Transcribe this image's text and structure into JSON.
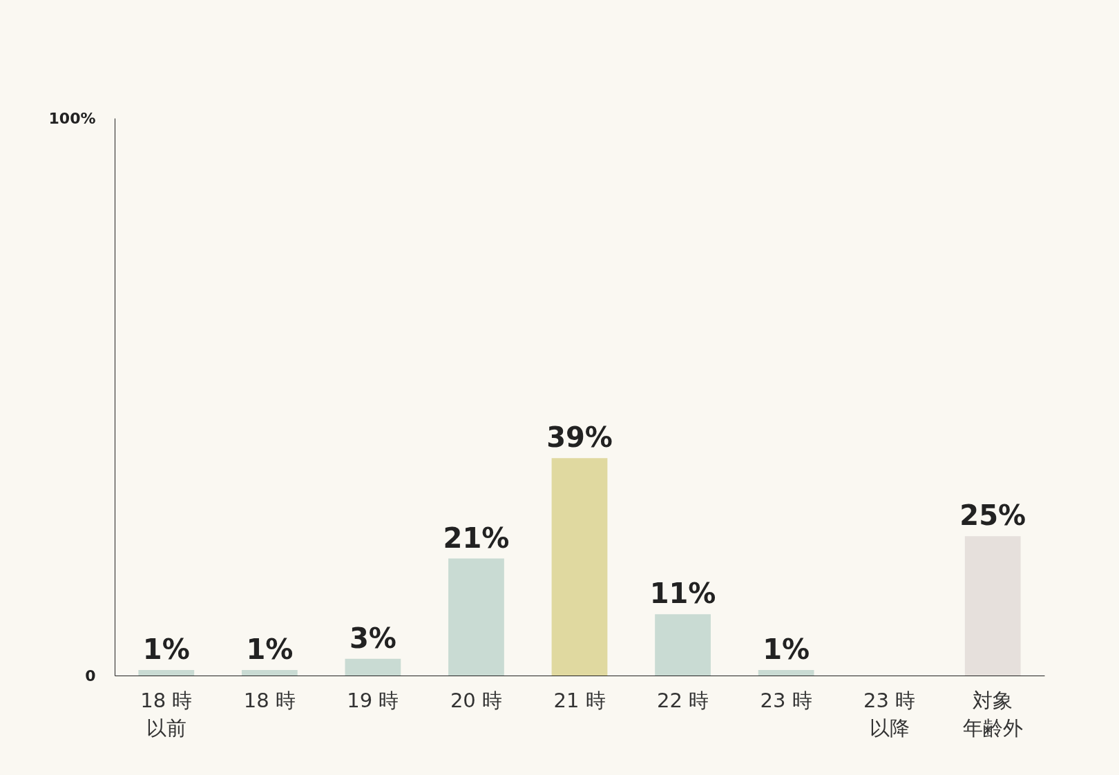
{
  "chart_data": {
    "type": "bar",
    "categories": [
      "18 時以前",
      "18 時",
      "19 時",
      "20 時",
      "21 時",
      "22 時",
      "23 時",
      "23 時以降",
      "対象年齢外"
    ],
    "values": [
      1,
      1,
      3,
      21,
      39,
      11,
      1,
      null,
      25
    ],
    "colors": [
      "#c9dbd3",
      "#c9dbd3",
      "#c9dbd3",
      "#c9dbd3",
      "#e0d9a0",
      "#c9dbd3",
      "#c9dbd3",
      "#c9dbd3",
      "#e6e0dc"
    ],
    "value_labels": [
      "1%",
      "1%",
      "3%",
      "21%",
      "39%",
      "11%",
      "1%",
      null,
      "25%"
    ],
    "ylim": [
      0,
      100
    ],
    "yticks": [
      0,
      {
        "value": 100,
        "label": "100%"
      }
    ],
    "grid": false
  }
}
